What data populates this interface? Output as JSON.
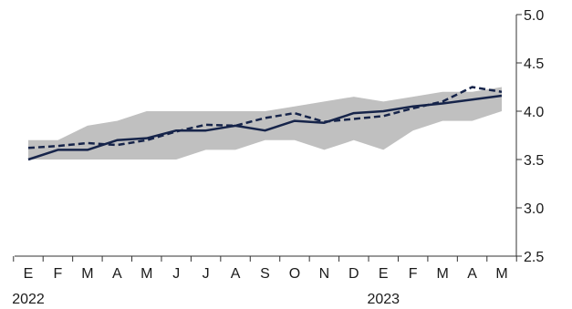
{
  "chart_data": {
    "type": "line",
    "categories": [
      "E",
      "F",
      "M",
      "A",
      "M",
      "J",
      "J",
      "A",
      "S",
      "O",
      "N",
      "D",
      "E",
      "F",
      "M",
      "A",
      "M"
    ],
    "year_labels": [
      {
        "label": "2022",
        "index": 0
      },
      {
        "label": "2023",
        "index": 12
      }
    ],
    "yticks": [
      "2.5",
      "3.0",
      "3.5",
      "4.0",
      "4.5",
      "5.0"
    ],
    "ylim": [
      2.5,
      5.0
    ],
    "band": {
      "low": [
        3.5,
        3.5,
        3.5,
        3.5,
        3.5,
        3.5,
        3.6,
        3.6,
        3.7,
        3.7,
        3.6,
        3.7,
        3.6,
        3.8,
        3.9,
        3.9,
        4.0
      ],
      "high": [
        3.7,
        3.7,
        3.85,
        3.9,
        4.0,
        4.0,
        4.0,
        4.0,
        4.0,
        4.05,
        4.1,
        4.15,
        4.1,
        4.15,
        4.2,
        4.2,
        4.25
      ],
      "color": "#c0c0c0"
    },
    "series": [
      {
        "style": "solid",
        "color": "#16244a",
        "values": [
          3.5,
          3.6,
          3.6,
          3.7,
          3.72,
          3.8,
          3.8,
          3.85,
          3.8,
          3.9,
          3.88,
          3.98,
          4.0,
          4.05,
          4.08,
          4.12,
          4.16
        ]
      },
      {
        "style": "dashed",
        "color": "#16244a",
        "values": [
          3.62,
          3.64,
          3.67,
          3.65,
          3.7,
          3.79,
          3.86,
          3.85,
          3.93,
          3.98,
          3.89,
          3.92,
          3.95,
          4.03,
          4.1,
          4.25,
          4.2
        ]
      }
    ],
    "grid": false,
    "legend": "none"
  }
}
